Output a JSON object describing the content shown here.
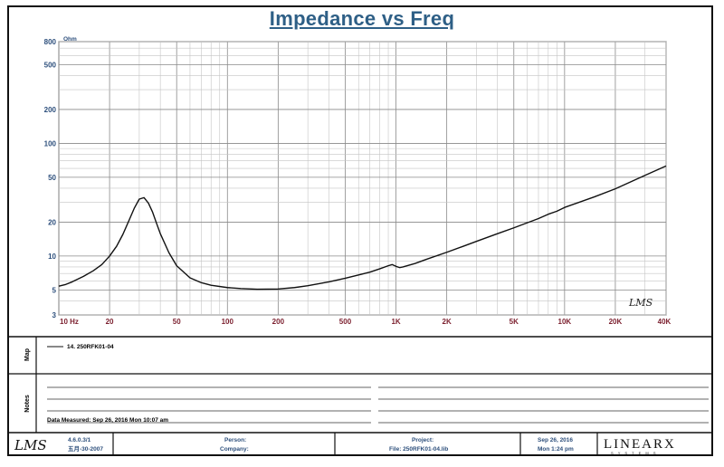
{
  "chart_data": {
    "type": "line",
    "title": "Impedance vs Freq",
    "yunit": "Ohm",
    "xscale": "log",
    "yscale": "log",
    "xlim": [
      10,
      40000
    ],
    "ylim": [
      3,
      800
    ],
    "grid": true,
    "x_ticks": [
      {
        "v": 10,
        "label": "10  Hz"
      },
      {
        "v": 20,
        "label": "20"
      },
      {
        "v": 50,
        "label": "50"
      },
      {
        "v": 100,
        "label": "100"
      },
      {
        "v": 200,
        "label": "200"
      },
      {
        "v": 500,
        "label": "500"
      },
      {
        "v": 1000,
        "label": "1K"
      },
      {
        "v": 2000,
        "label": "2K"
      },
      {
        "v": 5000,
        "label": "5K"
      },
      {
        "v": 10000,
        "label": "10K"
      },
      {
        "v": 20000,
        "label": "20K"
      },
      {
        "v": 40000,
        "label": "40K"
      }
    ],
    "y_ticks": [
      {
        "v": 800,
        "label": "800"
      },
      {
        "v": 500,
        "label": "500"
      },
      {
        "v": 200,
        "label": "200"
      },
      {
        "v": 100,
        "label": "100"
      },
      {
        "v": 50,
        "label": "50"
      },
      {
        "v": 20,
        "label": "20"
      },
      {
        "v": 10,
        "label": "10"
      },
      {
        "v": 5,
        "label": "5"
      },
      {
        "v": 3,
        "label": "3"
      }
    ],
    "series": [
      {
        "name": "14. 250RFK01-04",
        "color": "#111111",
        "x": [
          10,
          11,
          12,
          14,
          16,
          18,
          20,
          22,
          24,
          26,
          28,
          30,
          32,
          34,
          36,
          38,
          40,
          45,
          50,
          60,
          70,
          80,
          100,
          120,
          150,
          200,
          250,
          300,
          400,
          500,
          600,
          700,
          800,
          900,
          950,
          1000,
          1050,
          1100,
          1300,
          1500,
          2000,
          2500,
          3000,
          4000,
          5000,
          7000,
          8000,
          9000,
          10000,
          15000,
          20000,
          30000,
          40000
        ],
        "y": [
          5.4,
          5.6,
          5.9,
          6.6,
          7.4,
          8.4,
          10.0,
          12.2,
          15.6,
          20.5,
          26.5,
          32.0,
          33.0,
          29.5,
          24.5,
          19.5,
          15.8,
          10.7,
          8.2,
          6.4,
          5.8,
          5.5,
          5.25,
          5.15,
          5.08,
          5.1,
          5.25,
          5.45,
          5.9,
          6.35,
          6.8,
          7.2,
          7.7,
          8.2,
          8.4,
          8.1,
          7.9,
          8.0,
          8.6,
          9.3,
          10.8,
          12.2,
          13.5,
          15.8,
          17.8,
          21.5,
          23.5,
          25.0,
          27.0,
          33.5,
          39.5,
          52.0,
          63.0
        ]
      }
    ]
  },
  "footer": {
    "map_label": "Map",
    "notes_label": "Notes",
    "legend_entry": "14. 250RFK01-04",
    "measured": "Data Measured: Sep 26, 2016  Mon 10:07 am",
    "lms_mark": "LMS",
    "version": "4.6.0.3/1",
    "version_date": "五月-30-2007",
    "person_label": "Person:",
    "company_label": "Company:",
    "project_label": "Project:",
    "file_label": "File: 250RFK01-04.lib",
    "date": "Sep 26, 2016",
    "time": "Mon  1:24 pm",
    "brand": "LINEARX",
    "brand_sub": "S Y S T E M S"
  }
}
